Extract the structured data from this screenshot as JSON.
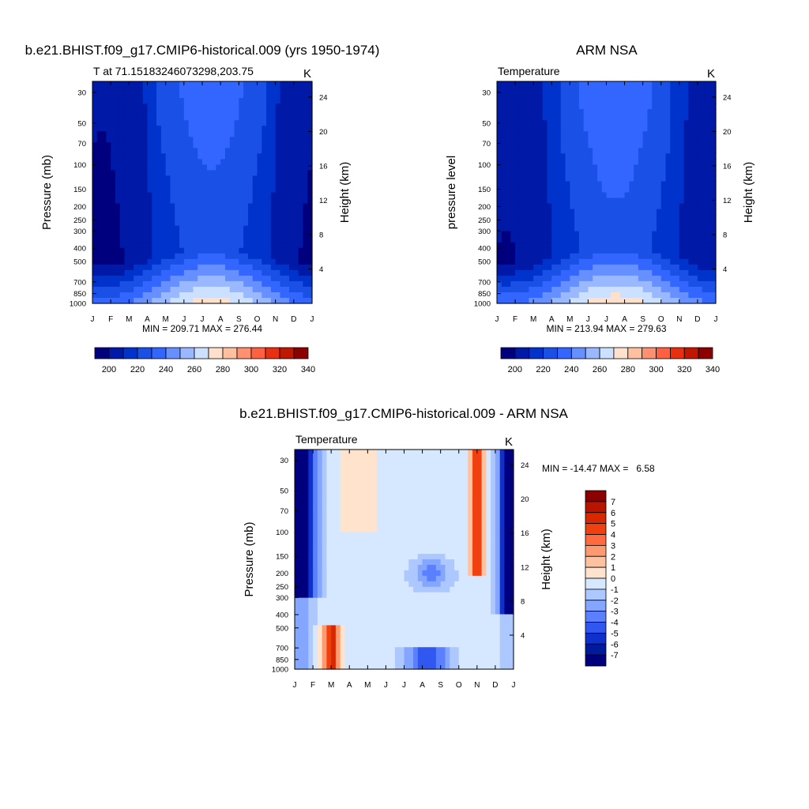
{
  "chart_data": [
    {
      "type": "heatmap",
      "title": "b.e21.BHIST.f09_g17.CMIP6-historical.009 (yrs 1950-1974)",
      "left_label": "T at 71.15183246073298,203.75",
      "units": "K",
      "xlabel": "",
      "ylabel": "Pressure (mb)",
      "ylabel_right": "Height (km)",
      "x_ticks": [
        "J",
        "F",
        "M",
        "A",
        "M",
        "J",
        "J",
        "A",
        "S",
        "O",
        "N",
        "D",
        "J"
      ],
      "y_ticks": [
        30,
        50,
        70,
        100,
        150,
        200,
        250,
        300,
        400,
        500,
        700,
        850,
        1000
      ],
      "y_ticks_right": [
        4,
        8,
        12,
        16,
        20,
        24
      ],
      "ylim": [
        1000,
        25
      ],
      "min_max_text": "MIN = 209.71 MAX = 276.44",
      "min": 209.71,
      "max": 276.44,
      "levels": [
        200,
        210,
        220,
        230,
        240,
        250,
        260,
        270,
        280,
        290,
        300,
        310,
        320,
        330,
        340
      ],
      "colorbar_labels": [
        200,
        220,
        240,
        260,
        280,
        300,
        320,
        340
      ],
      "colorbar_orientation": "horizontal"
    },
    {
      "type": "heatmap",
      "title": "ARM NSA",
      "left_label": "Temperature",
      "units": "K",
      "xlabel": "",
      "ylabel": "pressure level",
      "ylabel_right": "Height (km)",
      "x_ticks": [
        "J",
        "F",
        "M",
        "A",
        "M",
        "J",
        "J",
        "A",
        "S",
        "O",
        "N",
        "D",
        "J"
      ],
      "y_ticks": [
        30,
        50,
        70,
        100,
        150,
        200,
        250,
        300,
        400,
        500,
        700,
        850,
        1000
      ],
      "y_ticks_right": [
        4,
        8,
        12,
        16,
        20,
        24
      ],
      "ylim": [
        1000,
        25
      ],
      "min_max_text": "MIN = 213.94 MAX = 279.63",
      "min": 213.94,
      "max": 279.63,
      "levels": [
        200,
        210,
        220,
        230,
        240,
        250,
        260,
        270,
        280,
        290,
        300,
        310,
        320,
        330,
        340
      ],
      "colorbar_labels": [
        200,
        220,
        240,
        260,
        280,
        300,
        320,
        340
      ],
      "colorbar_orientation": "horizontal"
    },
    {
      "type": "heatmap",
      "title": "b.e21.BHIST.f09_g17.CMIP6-historical.009 - ARM NSA",
      "left_label": "Temperature",
      "units": "K",
      "xlabel": "",
      "ylabel": "Pressure (mb)",
      "ylabel_right": "Height (km)",
      "x_ticks": [
        "J",
        "F",
        "M",
        "A",
        "M",
        "J",
        "J",
        "A",
        "S",
        "O",
        "N",
        "D",
        "J"
      ],
      "y_ticks": [
        30,
        50,
        70,
        100,
        150,
        200,
        250,
        300,
        400,
        500,
        700,
        850,
        1000
      ],
      "y_ticks_right": [
        4,
        8,
        12,
        16,
        20,
        24
      ],
      "ylim": [
        1000,
        25
      ],
      "min_max_text": "MIN = -14.47 MAX =   6.58",
      "min": -14.47,
      "max": 6.58,
      "levels": [
        -7,
        -6,
        -5,
        -4,
        -3,
        -2,
        -1,
        0,
        1,
        2,
        3,
        4,
        5,
        6,
        7
      ],
      "colorbar_labels": [
        7,
        6,
        5,
        4,
        3,
        2,
        1,
        0,
        -1,
        -2,
        -3,
        -4,
        -5,
        -6,
        -7
      ],
      "colorbar_orientation": "vertical"
    }
  ],
  "colors": {
    "abs_palette": [
      "#00007f",
      "#0019a6",
      "#0033cc",
      "#1a50e6",
      "#3366ff",
      "#6690ff",
      "#99b8ff",
      "#cce0ff",
      "#ffe0cc",
      "#ffc0a0",
      "#ff9070",
      "#ff6040",
      "#e83010",
      "#c01800",
      "#8c0000"
    ],
    "diff_palette": [
      "#8c0000",
      "#b81400",
      "#d82800",
      "#f04010",
      "#ff6a40",
      "#ff9a70",
      "#ffc2a0",
      "#ffe3cc",
      "#d6e8ff",
      "#adc8ff",
      "#85a6ff",
      "#5a80ff",
      "#3058f0",
      "#1030cc",
      "#001a9e",
      "#00007f"
    ]
  }
}
